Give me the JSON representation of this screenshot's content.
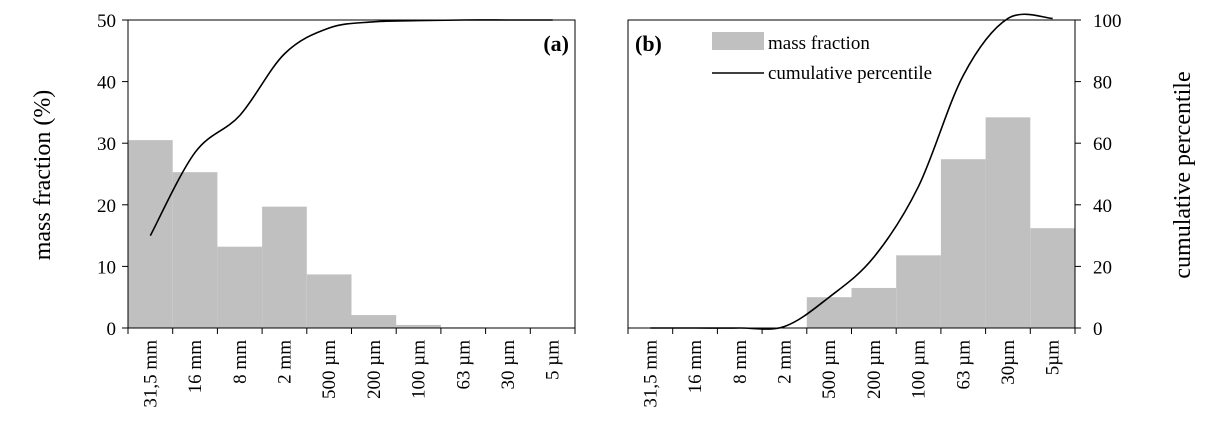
{
  "chart_data": [
    {
      "type": "bar",
      "panel_label": "(a)",
      "categories": [
        "31,5 mm",
        "16 mm",
        "8 mm",
        "2 mm",
        "500 µm",
        "200 µm",
        "100 µm",
        "63 µm",
        "30 µm",
        "5 µm"
      ],
      "series": [
        {
          "name": "mass fraction",
          "type": "bar",
          "axis": "left",
          "values": [
            30.5,
            25.3,
            13.2,
            19.7,
            8.7,
            2.1,
            0.5,
            0.1,
            0.05,
            0.0
          ]
        },
        {
          "name": "cumulative percentile",
          "type": "line",
          "axis": "left",
          "values": [
            15.0,
            28.5,
            34.5,
            44.5,
            48.7,
            49.7,
            49.9,
            50.0,
            50.0,
            50.0
          ]
        }
      ],
      "ylabel": "mass fraction (%)",
      "ylim": [
        0,
        50
      ],
      "yticks": [
        0,
        10,
        20,
        30,
        40,
        50
      ],
      "grid": false
    },
    {
      "type": "bar",
      "panel_label": "(b)",
      "categories": [
        "31,5 mm",
        "16 mm",
        "8 mm",
        "2 mm",
        "500 µm",
        "200 µm",
        "100 µm",
        "63 µm",
        "30µm",
        "5µm"
      ],
      "series": [
        {
          "name": "mass fraction",
          "type": "bar",
          "axis": "left",
          "values": [
            0.0,
            0.0,
            0.0,
            0.0,
            5.0,
            6.5,
            11.8,
            27.4,
            34.2,
            16.2
          ]
        },
        {
          "name": "cumulative percentile",
          "type": "line",
          "axis": "right",
          "values": [
            0.0,
            0.0,
            0.0,
            0.5,
            10.0,
            23.0,
            46.0,
            82.0,
            100.5,
            100.5
          ]
        }
      ],
      "ylim": [
        0,
        50
      ],
      "y2label": "cumulative percentile",
      "y2lim": [
        0,
        100
      ],
      "y2ticks": [
        0,
        20,
        40,
        60,
        80,
        100
      ],
      "legend": {
        "placement": "top-center",
        "entries": [
          "mass fraction",
          "cumulative percentile"
        ]
      },
      "grid": false
    }
  ],
  "colors": {
    "bar": "#c0c0c0",
    "line": "#000000",
    "axis": "#000000"
  }
}
